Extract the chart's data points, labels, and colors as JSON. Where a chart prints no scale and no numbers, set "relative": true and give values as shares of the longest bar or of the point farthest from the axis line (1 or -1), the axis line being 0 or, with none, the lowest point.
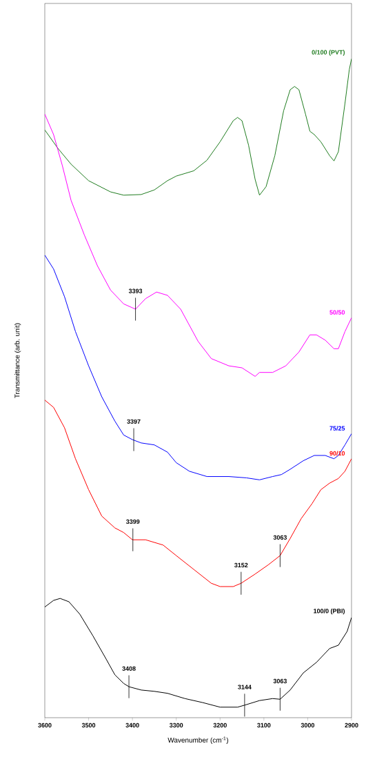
{
  "chart_data": {
    "type": "line",
    "relative": true,
    "xlabel": "Wavenumber (cm$^{-1}$)",
    "ylabel": "Transmittance (arb. unit)",
    "xlim": [
      3600,
      2900
    ],
    "xticks": [
      3600,
      3500,
      3400,
      3300,
      3200,
      3100,
      3000,
      2900
    ],
    "series": [
      {
        "name": "0/100 (PVT)",
        "color": "#1e7b1e",
        "x": [
          3600,
          3570,
          3540,
          3500,
          3450,
          3420,
          3380,
          3350,
          3320,
          3300,
          3260,
          3230,
          3200,
          3170,
          3160,
          3150,
          3135,
          3120,
          3110,
          3095,
          3075,
          3055,
          3040,
          3030,
          3020,
          3005,
          2995,
          2985,
          2970,
          2950,
          2940,
          2930,
          2915,
          2905,
          2900
        ],
        "values": [
          0.892,
          0.864,
          0.84,
          0.815,
          0.798,
          0.793,
          0.794,
          0.801,
          0.815,
          0.822,
          0.83,
          0.846,
          0.874,
          0.906,
          0.911,
          0.906,
          0.869,
          0.817,
          0.793,
          0.806,
          0.853,
          0.921,
          0.953,
          0.958,
          0.953,
          0.916,
          0.89,
          0.885,
          0.874,
          0.853,
          0.845,
          0.859,
          0.932,
          0.984,
          1.0
        ]
      },
      {
        "name": "50/50",
        "color": "#ff00ff",
        "x": [
          3600,
          3580,
          3560,
          3540,
          3510,
          3480,
          3450,
          3420,
          3393,
          3370,
          3345,
          3320,
          3290,
          3250,
          3220,
          3180,
          3150,
          3120,
          3110,
          3080,
          3050,
          3020,
          2995,
          2980,
          2960,
          2940,
          2930,
          2915,
          2900
        ],
        "values": [
          0.916,
          0.885,
          0.838,
          0.785,
          0.733,
          0.686,
          0.649,
          0.628,
          0.62,
          0.636,
          0.646,
          0.641,
          0.62,
          0.571,
          0.545,
          0.534,
          0.531,
          0.518,
          0.524,
          0.524,
          0.534,
          0.555,
          0.581,
          0.581,
          0.573,
          0.56,
          0.56,
          0.586,
          0.607
        ]
      },
      {
        "name": "75/25",
        "color": "#0000ff",
        "x": [
          3600,
          3580,
          3555,
          3530,
          3500,
          3470,
          3440,
          3420,
          3400,
          3380,
          3350,
          3320,
          3300,
          3270,
          3230,
          3180,
          3140,
          3110,
          3080,
          3060,
          3040,
          3010,
          2985,
          2960,
          2940,
          2930,
          2915,
          2900
        ],
        "values": [
          0.702,
          0.681,
          0.639,
          0.586,
          0.534,
          0.487,
          0.45,
          0.429,
          0.422,
          0.417,
          0.414,
          0.403,
          0.387,
          0.374,
          0.366,
          0.366,
          0.364,
          0.361,
          0.366,
          0.369,
          0.377,
          0.39,
          0.398,
          0.398,
          0.393,
          0.398,
          0.414,
          0.431
        ]
      },
      {
        "name": "90/10",
        "color": "#ff0000",
        "x": [
          3600,
          3580,
          3555,
          3530,
          3500,
          3470,
          3440,
          3420,
          3400,
          3370,
          3330,
          3300,
          3260,
          3220,
          3200,
          3170,
          3152,
          3120,
          3090,
          3063,
          3040,
          3015,
          2990,
          2970,
          2950,
          2930,
          2915,
          2900
        ],
        "values": [
          0.482,
          0.471,
          0.44,
          0.393,
          0.346,
          0.306,
          0.288,
          0.281,
          0.27,
          0.27,
          0.262,
          0.246,
          0.225,
          0.204,
          0.199,
          0.199,
          0.204,
          0.218,
          0.232,
          0.246,
          0.272,
          0.302,
          0.325,
          0.346,
          0.356,
          0.363,
          0.374,
          0.393
        ]
      },
      {
        "name": "100/0 (PBI)",
        "color": "#000000",
        "x": [
          3600,
          3580,
          3565,
          3545,
          3520,
          3490,
          3460,
          3440,
          3420,
          3408,
          3380,
          3350,
          3320,
          3280,
          3240,
          3200,
          3160,
          3144,
          3110,
          3080,
          3063,
          3040,
          3010,
          2980,
          2950,
          2930,
          2910,
          2900
        ],
        "values": [
          0.168,
          0.178,
          0.181,
          0.176,
          0.157,
          0.124,
          0.089,
          0.065,
          0.052,
          0.047,
          0.042,
          0.04,
          0.037,
          0.029,
          0.023,
          0.016,
          0.016,
          0.019,
          0.026,
          0.029,
          0.028,
          0.042,
          0.068,
          0.084,
          0.105,
          0.11,
          0.131,
          0.152
        ]
      }
    ],
    "annotations": [
      {
        "text": "3393",
        "x": 3393,
        "y": 0.62
      },
      {
        "text": "3397",
        "x": 3397,
        "y": 0.422
      },
      {
        "text": "3399",
        "x": 3399,
        "y": 0.27
      },
      {
        "text": "3152",
        "x": 3152,
        "y": 0.204
      },
      {
        "text": "3063",
        "x": 3063,
        "y": 0.246
      },
      {
        "text": "3408",
        "x": 3408,
        "y": 0.047
      },
      {
        "text": "3144",
        "x": 3144,
        "y": 0.019
      },
      {
        "text": "3063",
        "x": 3063,
        "y": 0.028
      }
    ]
  }
}
